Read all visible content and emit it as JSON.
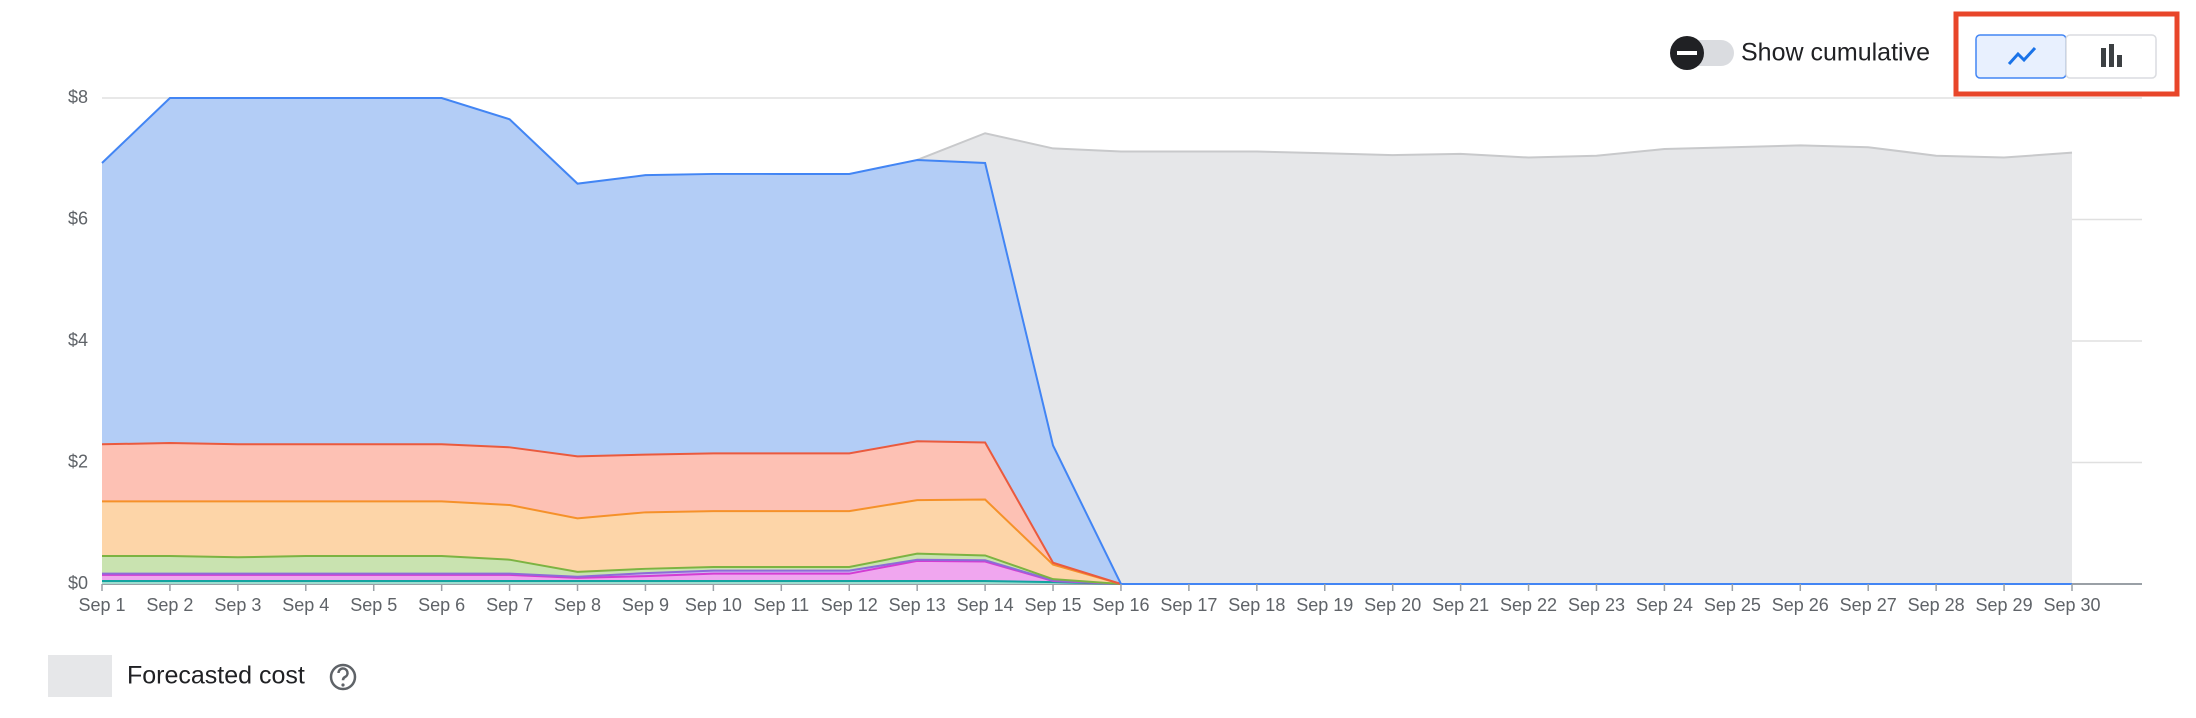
{
  "chart_data": {
    "type": "stacked_area",
    "categories": [
      "Sep 1",
      "Sep 2",
      "Sep 3",
      "Sep 4",
      "Sep 5",
      "Sep 6",
      "Sep 7",
      "Sep 8",
      "Sep 9",
      "Sep 10",
      "Sep 11",
      "Sep 12",
      "Sep 13",
      "Sep 14",
      "Sep 15",
      "Sep 16",
      "Sep 17",
      "Sep 18",
      "Sep 19",
      "Sep 20",
      "Sep 21",
      "Sep 22",
      "Sep 23",
      "Sep 24",
      "Sep 25",
      "Sep 26",
      "Sep 27",
      "Sep 28",
      "Sep 29",
      "Sep 30"
    ],
    "ylim": [
      0,
      8
    ],
    "yticks": [
      {
        "value": 0,
        "label": "$0"
      },
      {
        "value": 2,
        "label": "$2"
      },
      {
        "value": 4,
        "label": "$4"
      },
      {
        "value": 6,
        "label": "$6"
      },
      {
        "value": 8,
        "label": "$8"
      }
    ],
    "grid": true,
    "series": [
      {
        "color": "#12a4a0",
        "fill": "#a0dccf",
        "values": [
          0.05,
          0.05,
          0.05,
          0.05,
          0.05,
          0.05,
          0.05,
          0.05,
          0.05,
          0.05,
          0.05,
          0.05,
          0.05,
          0.05,
          0.03,
          0,
          0,
          0,
          0,
          0,
          0,
          0,
          0,
          0,
          0,
          0,
          0,
          0,
          0,
          0
        ]
      },
      {
        "color": "#d33cd3",
        "fill": "#f0a6ef",
        "values": [
          0.1,
          0.1,
          0.1,
          0.1,
          0.1,
          0.1,
          0.1,
          0.05,
          0.08,
          0.12,
          0.12,
          0.12,
          0.33,
          0.32,
          0.02,
          0,
          0,
          0,
          0,
          0,
          0,
          0,
          0,
          0,
          0,
          0,
          0,
          0,
          0,
          0
        ]
      },
      {
        "color": "#8e6bd8",
        "fill": "#cbb9f0",
        "values": [
          0.02,
          0.02,
          0.02,
          0.02,
          0.02,
          0.02,
          0.02,
          0.02,
          0.05,
          0.05,
          0.05,
          0.05,
          0.02,
          0.02,
          0.01,
          0,
          0,
          0,
          0,
          0,
          0,
          0,
          0,
          0,
          0,
          0,
          0,
          0,
          0,
          0
        ]
      },
      {
        "color": "#7cb342",
        "fill": "#c9e3b0",
        "values": [
          0.29,
          0.29,
          0.27,
          0.29,
          0.29,
          0.29,
          0.23,
          0.08,
          0.07,
          0.06,
          0.06,
          0.06,
          0.1,
          0.08,
          0.02,
          0,
          0,
          0,
          0,
          0,
          0,
          0,
          0,
          0,
          0,
          0,
          0,
          0,
          0,
          0
        ]
      },
      {
        "color": "#f5912a",
        "fill": "#fdd5a8",
        "values": [
          0.9,
          0.9,
          0.92,
          0.9,
          0.9,
          0.9,
          0.9,
          0.88,
          0.93,
          0.92,
          0.92,
          0.92,
          0.88,
          0.92,
          0.24,
          0,
          0,
          0,
          0,
          0,
          0,
          0,
          0,
          0,
          0,
          0,
          0,
          0,
          0,
          0
        ]
      },
      {
        "color": "#ea5a3e",
        "fill": "#fdc1b4",
        "values": [
          0.94,
          0.96,
          0.94,
          0.94,
          0.94,
          0.94,
          0.95,
          1.02,
          0.95,
          0.95,
          0.95,
          0.95,
          0.97,
          0.94,
          0.03,
          0,
          0,
          0,
          0,
          0,
          0,
          0,
          0,
          0,
          0,
          0,
          0,
          0,
          0,
          0
        ]
      },
      {
        "color": "#4285f4",
        "fill": "#b3cdf6",
        "values": [
          4.63,
          5.68,
          5.7,
          5.7,
          5.7,
          5.7,
          5.4,
          4.49,
          4.6,
          4.6,
          4.6,
          4.6,
          4.63,
          4.6,
          1.93,
          0,
          0,
          0,
          0,
          0,
          0,
          0,
          0,
          0,
          0,
          0,
          0,
          0,
          0,
          0
        ]
      }
    ],
    "forecast": {
      "name": "Forecasted cost",
      "color": "#e6e7e9",
      "stroke": "#c8c9cb",
      "values": [
        null,
        null,
        null,
        null,
        null,
        null,
        null,
        null,
        null,
        null,
        null,
        null,
        6.98,
        7.42,
        7.17,
        7.12,
        7.12,
        7.12,
        7.09,
        7.06,
        7.08,
        7.02,
        7.05,
        7.16,
        7.19,
        7.22,
        7.19,
        7.05,
        7.02,
        7.1
      ]
    }
  },
  "controls": {
    "cumulative_label": "Show cumulative",
    "cumulative_on": false,
    "selected_view": "line"
  }
}
